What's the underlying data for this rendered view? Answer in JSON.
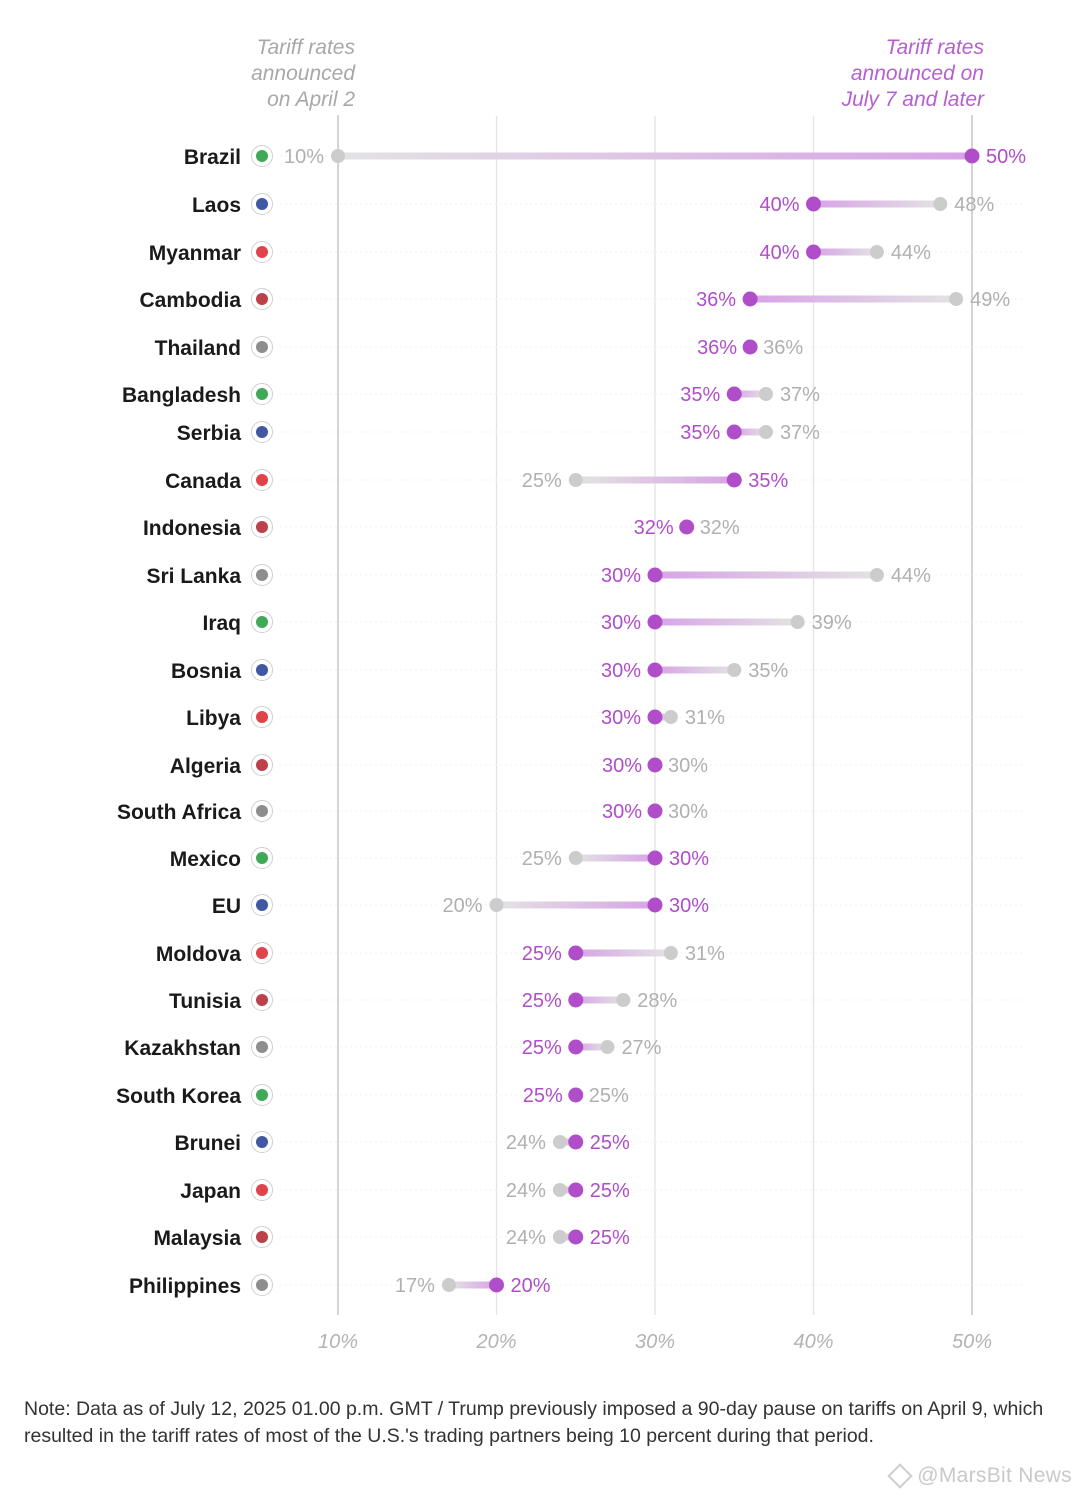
{
  "chart_data": {
    "type": "dumbbell",
    "title": "",
    "header_left": "Tariff rates\nannounced\non April 2",
    "header_right": "Tariff rates\nannounced on\nJuly 7 and later",
    "xlabel": "",
    "ylabel": "",
    "xlim": [
      10,
      50
    ],
    "x_ticks": [
      10,
      20,
      30,
      40,
      50
    ],
    "x_tick_labels": [
      "10%",
      "20%",
      "30%",
      "40%",
      "50%"
    ],
    "grid": true,
    "colors": {
      "april": "#cccccc",
      "july": "#b04ec9",
      "april_label": "#b0b0b0",
      "july_label": "#b04ec9",
      "country": "#1a1a1a"
    },
    "series_names": [
      "Tariff rates announced on April 2",
      "Tariff rates announced on July 7 and later"
    ],
    "rows": [
      {
        "country": "Brazil",
        "april": 10,
        "july": 50,
        "april_label": "10%",
        "july_label": "50%"
      },
      {
        "country": "Laos",
        "april": 48,
        "july": 40,
        "april_label": "48%",
        "july_label": "40%"
      },
      {
        "country": "Myanmar",
        "april": 44,
        "july": 40,
        "april_label": "44%",
        "july_label": "40%"
      },
      {
        "country": "Cambodia",
        "april": 49,
        "july": 36,
        "april_label": "49%",
        "july_label": "36%"
      },
      {
        "country": "Thailand",
        "april": 36,
        "july": 36,
        "april_label": "36%",
        "july_label": "36%"
      },
      {
        "country": "Bangladesh",
        "april": 37,
        "july": 35,
        "april_label": "37%",
        "july_label": "35%"
      },
      {
        "country": "Serbia",
        "april": 37,
        "july": 35,
        "april_label": "37%",
        "july_label": "35%"
      },
      {
        "country": "Canada",
        "april": 25,
        "july": 35,
        "april_label": "25%",
        "july_label": "35%"
      },
      {
        "country": "Indonesia",
        "april": 32,
        "july": 32,
        "april_label": "32%",
        "july_label": "32%"
      },
      {
        "country": "Sri Lanka",
        "april": 44,
        "july": 30,
        "april_label": "44%",
        "july_label": "30%"
      },
      {
        "country": "Iraq",
        "april": 39,
        "july": 30,
        "april_label": "39%",
        "july_label": "30%"
      },
      {
        "country": "Bosnia",
        "april": 35,
        "july": 30,
        "april_label": "35%",
        "july_label": "30%"
      },
      {
        "country": "Libya",
        "april": 31,
        "july": 30,
        "april_label": "31%",
        "july_label": "30%"
      },
      {
        "country": "Algeria",
        "april": 30,
        "july": 30,
        "april_label": "30%",
        "july_label": "30%"
      },
      {
        "country": "South Africa",
        "april": 30,
        "july": 30,
        "april_label": "30%",
        "july_label": "30%"
      },
      {
        "country": "Mexico",
        "april": 25,
        "july": 30,
        "april_label": "25%",
        "july_label": "30%"
      },
      {
        "country": "EU",
        "april": 20,
        "july": 30,
        "april_label": "20%",
        "july_label": "30%"
      },
      {
        "country": "Moldova",
        "april": 31,
        "july": 25,
        "april_label": "31%",
        "july_label": "25%"
      },
      {
        "country": "Tunisia",
        "april": 28,
        "july": 25,
        "april_label": "28%",
        "july_label": "25%"
      },
      {
        "country": "Kazakhstan",
        "april": 27,
        "july": 25,
        "april_label": "27%",
        "july_label": "25%"
      },
      {
        "country": "South Korea",
        "april": 25,
        "july": 25,
        "april_label": "25%",
        "july_label": "25%"
      },
      {
        "country": "Brunei",
        "april": 24,
        "july": 25,
        "april_label": "24%",
        "july_label": "25%"
      },
      {
        "country": "Japan",
        "april": 24,
        "july": 25,
        "april_label": "24%",
        "july_label": "25%"
      },
      {
        "country": "Malaysia",
        "april": 24,
        "july": 25,
        "april_label": "24%",
        "july_label": "25%"
      },
      {
        "country": "Philippines",
        "april": 17,
        "july": 20,
        "april_label": "17%",
        "july_label": "20%"
      }
    ]
  },
  "note": "Note: Data as of July 12, 2025 01.00 p.m. GMT / Trump previously imposed a 90-day pause on tariffs on April 9, which resulted in the tariff rates of most of the U.S.'s trading partners being 10 percent during that period.",
  "watermark": "@MarsBit News"
}
